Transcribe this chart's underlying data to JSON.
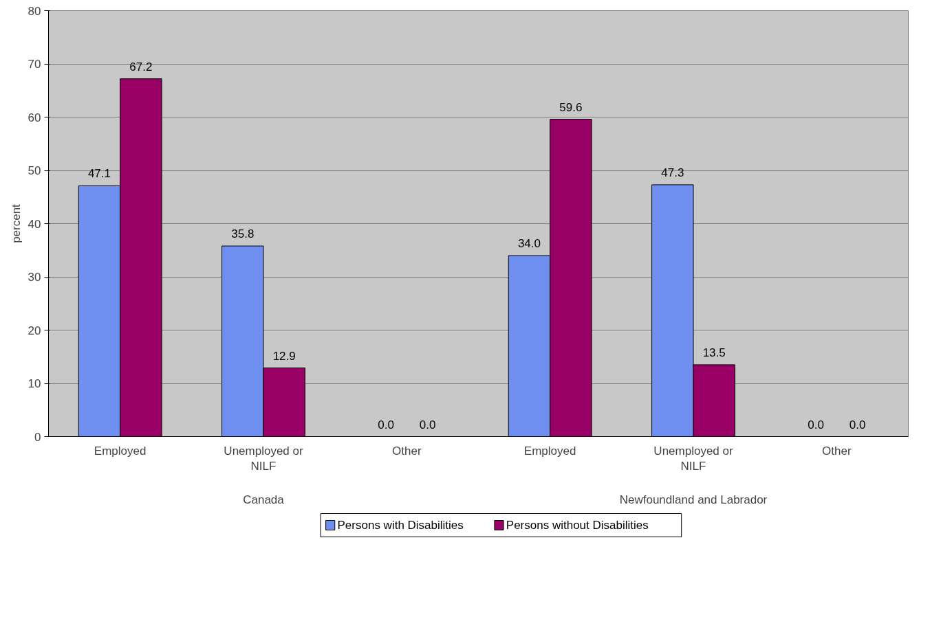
{
  "chart_data": {
    "type": "bar",
    "ylabel": "percent",
    "categories": [
      "Employed",
      "Unemployed or NILF",
      "Other",
      "Employed",
      "Unemployed or NILF",
      "Other"
    ],
    "annotations": [
      "Canada",
      "Newfoundland and Labrador"
    ],
    "series": [
      {
        "name": "Persons with Disabilities",
        "color": "#6f8ff0",
        "values": [
          47.1,
          35.8,
          0,
          34.0,
          47.3,
          0
        ],
        "value_labels": [
          "47.1",
          "35.8",
          "0.0",
          "34.0",
          "47.3",
          "0.0"
        ]
      },
      {
        "name": "Persons without Disabilities",
        "color": "#990066",
        "values": [
          67.2,
          12.9,
          0,
          59.6,
          13.5,
          0
        ],
        "value_labels": [
          "67.2",
          "12.9",
          "0.0",
          "59.6",
          "13.5",
          "0.0"
        ]
      }
    ],
    "ylim": [
      0,
      80
    ],
    "yticks": [
      0,
      10,
      20,
      30,
      40,
      50,
      60,
      70,
      80
    ],
    "grid": "y",
    "legend": "bottom"
  }
}
